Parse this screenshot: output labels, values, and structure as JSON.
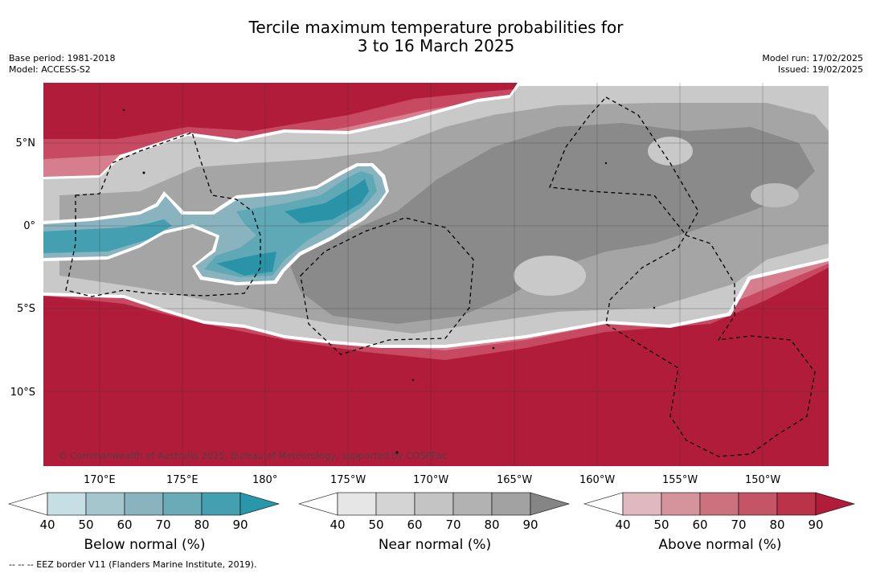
{
  "title": {
    "line1": "Tercile maximum temperature probabilities for",
    "line2": "3 to 16 March 2025"
  },
  "meta_left": {
    "base_period": "Base period: 1981-2018",
    "model": "Model: ACCESS-S2"
  },
  "meta_right": {
    "model_run": "Model run: 17/02/2025",
    "issued": "Issued: 19/02/2025"
  },
  "map": {
    "lat_labels": [
      "5°N",
      "0°",
      "5°S",
      "10°S"
    ],
    "lon_labels": [
      "170°E",
      "175°E",
      "180°",
      "175°W",
      "170°W",
      "165°W",
      "160°W",
      "155°W",
      "150°W"
    ],
    "copyright": "© Commonwealth of Australia 2025, Bureau of Meteorology, supported by COSPPac"
  },
  "colorbars": [
    {
      "title": "Below normal (%)",
      "ticks": [
        "40",
        "50",
        "60",
        "70",
        "80",
        "90"
      ],
      "colors": [
        "#ffffff",
        "#c6dfe5",
        "#a5c6cd",
        "#88b3bf",
        "#6aabb7",
        "#44a0b1",
        "#2896ab"
      ]
    },
    {
      "title": "Near normal (%)",
      "ticks": [
        "40",
        "50",
        "60",
        "70",
        "80",
        "90"
      ],
      "colors": [
        "#ffffff",
        "#e6e6e6",
        "#d4d4d4",
        "#c4c4c4",
        "#b2b2b2",
        "#a2a2a2",
        "#858585"
      ]
    },
    {
      "title": "Above normal (%)",
      "ticks": [
        "40",
        "50",
        "60",
        "70",
        "80",
        "90"
      ],
      "colors": [
        "#ffffff",
        "#e0b8bf",
        "#d5939c",
        "#cc727e",
        "#c35566",
        "#ba3349",
        "#b01c39"
      ]
    }
  ],
  "footer": {
    "eez_legend": "--  --  -- EEZ border V11 (Flanders Marine Institute, 2019)."
  },
  "colors": {
    "above_dark": "#b01c39",
    "above_mid": "#c2415a",
    "near_light": "#c9c9c9",
    "near_mid": "#a5a5a5",
    "near_dark": "#8a8a8a",
    "below_dark": "#2a93a8",
    "below_mid": "#6aaab8"
  }
}
